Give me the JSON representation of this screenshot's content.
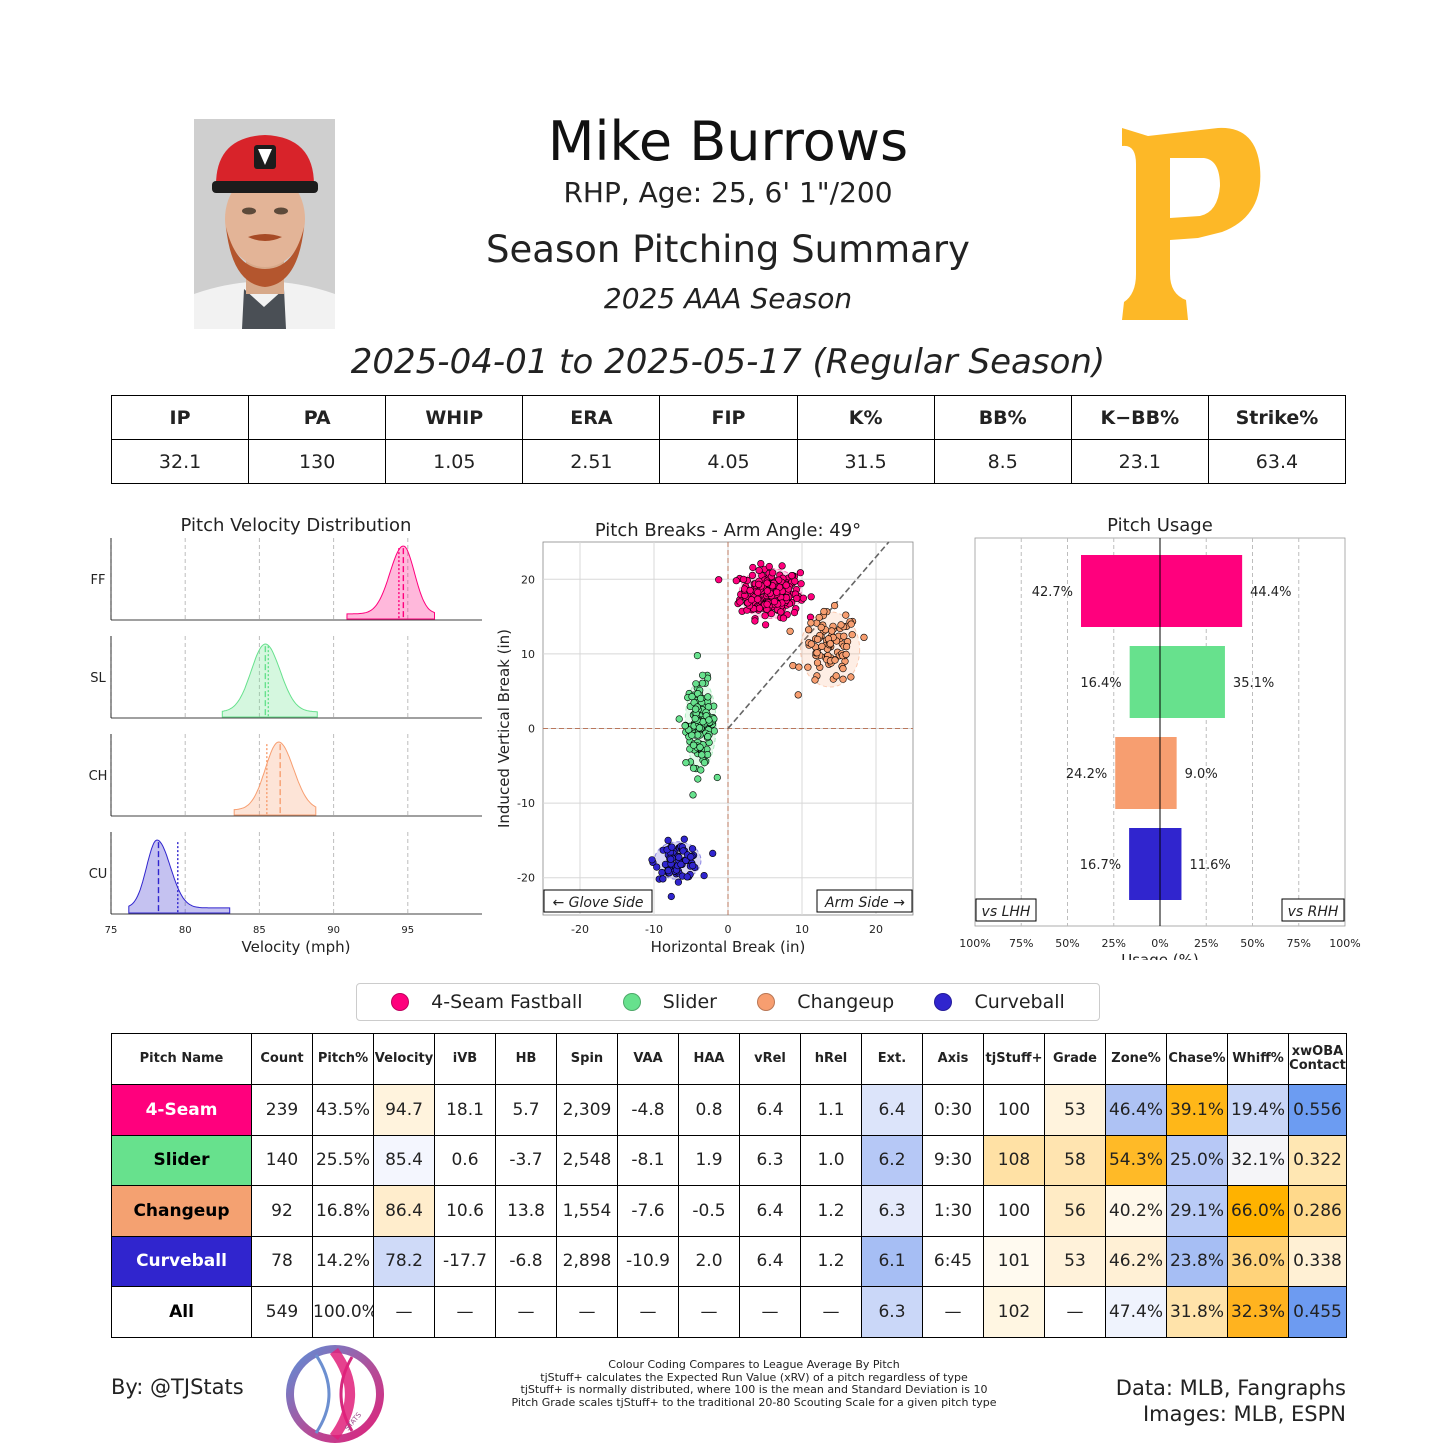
{
  "header": {
    "player_name": "Mike Burrows",
    "bio": "RHP, Age: 25, 6' 1\"/200",
    "summary_title": "Season Pitching Summary",
    "season": "2025 AAA Season",
    "date_range": "2025-04-01 to 2025-05-17 (Regular Season)",
    "team_logo_letter": "P",
    "team_color": "#FDB827"
  },
  "season_stats": {
    "headers": [
      "IP",
      "PA",
      "WHIP",
      "ERA",
      "FIP",
      "K%",
      "BB%",
      "K−BB%",
      "Strike%"
    ],
    "values": [
      "32.1",
      "130",
      "1.05",
      "2.51",
      "4.05",
      "31.5",
      "8.5",
      "23.1",
      "63.4"
    ]
  },
  "pitch_colors": {
    "FF": "#FF007D",
    "SL": "#67E18D",
    "CH": "#F79E70",
    "CU": "#3025CE"
  },
  "legend": [
    {
      "label": "4-Seam Fastball",
      "color": "#FF007D"
    },
    {
      "label": "Slider",
      "color": "#67E18D"
    },
    {
      "label": "Changeup",
      "color": "#F79E70"
    },
    {
      "label": "Curveball",
      "color": "#3025CE"
    }
  ],
  "chart_data": [
    {
      "type": "area",
      "title": "Pitch Velocity Distribution",
      "xlabel": "Velocity (mph)",
      "xlim": [
        75,
        100
      ],
      "xticks": [
        75,
        80,
        85,
        90,
        95
      ],
      "series": [
        {
          "name": "FF",
          "color": "#FF007D",
          "range": [
            90.9,
            96.8
          ],
          "peak": 94.7,
          "sd_left": 0.9,
          "sd_right": 0.75,
          "mean": 94.7,
          "league_avg": 94.4
        },
        {
          "name": "SL",
          "color": "#67E18D",
          "range": [
            82.5,
            88.9
          ],
          "peak": 85.4,
          "sd_left": 0.95,
          "sd_right": 1.0,
          "mean": 85.4,
          "league_avg": 85.6
        },
        {
          "name": "CH",
          "color": "#F79E70",
          "range": [
            83.3,
            88.8
          ],
          "peak": 86.3,
          "sd_left": 0.9,
          "sd_right": 1.0,
          "mean": 86.4,
          "league_avg": 85.5
        },
        {
          "name": "CU",
          "color": "#3025CE",
          "range": [
            76.2,
            83.0
          ],
          "peak": 78.1,
          "sd_left": 0.7,
          "sd_right": 0.9,
          "mean": 78.2,
          "league_avg": 79.5
        }
      ]
    },
    {
      "type": "scatter",
      "title": "Pitch Breaks - Arm Angle: 49°",
      "xlabel": "Horizontal Break (in)",
      "ylabel": "Induced Vertical Break (in)",
      "xlim": [
        -25,
        25
      ],
      "ylim": [
        -25,
        25
      ],
      "xticks": [
        -20,
        -10,
        0,
        10,
        20
      ],
      "yticks": [
        -20,
        -10,
        0,
        10,
        20
      ],
      "arm_angle": 49,
      "glove_label": "← Glove Side",
      "arm_label": "Arm Side →",
      "series": [
        {
          "name": "FF",
          "color": "#FF007D",
          "count": 239,
          "hb": 5.7,
          "ivb": 18.1,
          "sd_hb": 2.0,
          "sd_ivb": 1.6
        },
        {
          "name": "SL",
          "color": "#67E18D",
          "count": 140,
          "hb": -3.7,
          "ivb": 0.6,
          "sd_hb": 1.0,
          "sd_ivb": 2.8
        },
        {
          "name": "CH",
          "color": "#F79E70",
          "count": 92,
          "hb": 13.8,
          "ivb": 10.6,
          "sd_hb": 1.9,
          "sd_ivb": 2.4
        },
        {
          "name": "CU",
          "color": "#3025CE",
          "count": 78,
          "hb": -6.8,
          "ivb": -17.7,
          "sd_hb": 1.5,
          "sd_ivb": 1.2
        }
      ]
    },
    {
      "type": "bar",
      "title": "Pitch Usage",
      "xlabel": "Usage (%)",
      "xlim": [
        -100,
        100
      ],
      "xtick_labels": [
        "100%",
        "75%",
        "50%",
        "25%",
        "0%",
        "25%",
        "50%",
        "75%",
        "100%"
      ],
      "left_label": "vs LHH",
      "right_label": "vs RHH",
      "categories": [
        "FF",
        "SL",
        "CH",
        "CU"
      ],
      "series": [
        {
          "name": "vs LHH",
          "values": [
            42.7,
            16.4,
            24.2,
            16.7
          ],
          "labels": [
            "42.7%",
            "16.4%",
            "24.2%",
            "16.7%"
          ]
        },
        {
          "name": "vs RHH",
          "values": [
            44.4,
            35.1,
            9.0,
            11.6
          ],
          "labels": [
            "44.4%",
            "35.1%",
            "9.0%",
            "11.6%"
          ]
        }
      ]
    }
  ],
  "pitch_table": {
    "columns": [
      "Pitch Name",
      "Count",
      "Pitch%",
      "Velocity",
      "iVB",
      "HB",
      "Spin",
      "VAA",
      "HAA",
      "vRel",
      "hRel",
      "Ext.",
      "Axis",
      "tjStuff+",
      "Grade",
      "Zone%",
      "Chase%",
      "Whiff%",
      "xwOBA\nContact"
    ],
    "rows": [
      {
        "name": "4-Seam",
        "name_bg": "#FF007D",
        "name_fg": "#ffffff",
        "cells": [
          "239",
          "43.5%",
          "94.7",
          "18.1",
          "5.7",
          "2,309",
          "-4.8",
          "0.8",
          "6.4",
          "1.1",
          "6.4",
          "0:30",
          "100",
          "53",
          "46.4%",
          "39.1%",
          "19.4%",
          "0.556"
        ],
        "colors": [
          "",
          "",
          "#FFF3DD",
          "",
          "",
          "",
          "",
          "",
          "",
          "",
          "#DCE4FA",
          "",
          "",
          "#FFF3DD",
          "#AEC2F4",
          "#FFB718",
          "#C8D6F8",
          "#6C9CF2"
        ]
      },
      {
        "name": "Slider",
        "name_bg": "#67E18D",
        "name_fg": "#000000",
        "cells": [
          "140",
          "25.5%",
          "85.4",
          "0.6",
          "-3.7",
          "2,548",
          "-8.1",
          "1.9",
          "6.3",
          "1.0",
          "6.2",
          "9:30",
          "108",
          "58",
          "54.3%",
          "25.0%",
          "32.1%",
          "0.322"
        ],
        "colors": [
          "",
          "",
          "#F4F6FE",
          "",
          "",
          "",
          "",
          "",
          "",
          "",
          "#B6C8F6",
          "",
          "#FFE1A5",
          "#FFE4B0",
          "#FFBA27",
          "#B7C8F6",
          "#F5F5F8",
          "#FFE7B3"
        ]
      },
      {
        "name": "Changeup",
        "name_bg": "#F4A171",
        "name_fg": "#000000",
        "cells": [
          "92",
          "16.8%",
          "86.4",
          "10.6",
          "13.8",
          "1,554",
          "-7.6",
          "-0.5",
          "6.4",
          "1.2",
          "6.3",
          "1:30",
          "100",
          "56",
          "40.2%",
          "29.1%",
          "66.0%",
          "0.286"
        ],
        "colors": [
          "",
          "",
          "#FFEDCC",
          "",
          "",
          "",
          "",
          "",
          "",
          "",
          "#E5EAFB",
          "",
          "",
          "#FFEBC5",
          "#FFF8EA",
          "#B9CBF6",
          "#FFB200",
          "#FFD98B"
        ]
      },
      {
        "name": "Curveball",
        "name_bg": "#3025CE",
        "name_fg": "#ffffff",
        "cells": [
          "78",
          "14.2%",
          "78.2",
          "-17.7",
          "-6.8",
          "2,898",
          "-10.9",
          "2.0",
          "6.4",
          "1.2",
          "6.1",
          "6:45",
          "101",
          "53",
          "46.2%",
          "23.8%",
          "36.0%",
          "0.338"
        ],
        "colors": [
          "",
          "",
          "#CFDAF8",
          "",
          "",
          "",
          "",
          "",
          "",
          "",
          "#A6BEF4",
          "",
          "#FFFAF0",
          "#FFF2DA",
          "#FFF0D5",
          "#A6BEF4",
          "#FFD37B",
          "#FFF0D4"
        ]
      },
      {
        "name": "All",
        "name_bg": "#ffffff",
        "name_fg": "#000000",
        "cells": [
          "549",
          "100.0%",
          "—",
          "—",
          "—",
          "—",
          "—",
          "—",
          "—",
          "—",
          "6.3",
          "—",
          "102",
          "—",
          "47.4%",
          "31.8%",
          "32.3%",
          "0.455"
        ],
        "colors": [
          "",
          "",
          "",
          "",
          "",
          "",
          "",
          "",
          "",
          "",
          "#CAD7F8",
          "",
          "#FFF6E2",
          "",
          "#EFF3FD",
          "#FFE3AA",
          "#FFB31F",
          "#6D9BF1"
        ]
      }
    ]
  },
  "footer": {
    "byline": "By: @TJStats",
    "logo_text": "STATS",
    "notes": [
      "Colour Coding Compares to League Average By Pitch",
      "tjStuff+ calculates the Expected Run Value (xRV) of a pitch regardless of type",
      "tjStuff+ is normally distributed, where 100 is the mean and Standard Deviation is 10",
      "Pitch Grade scales tjStuff+ to the traditional 20-80 Scouting Scale for a given pitch type"
    ],
    "credits": [
      "Data: MLB, Fangraphs",
      "Images: MLB, ESPN"
    ]
  }
}
